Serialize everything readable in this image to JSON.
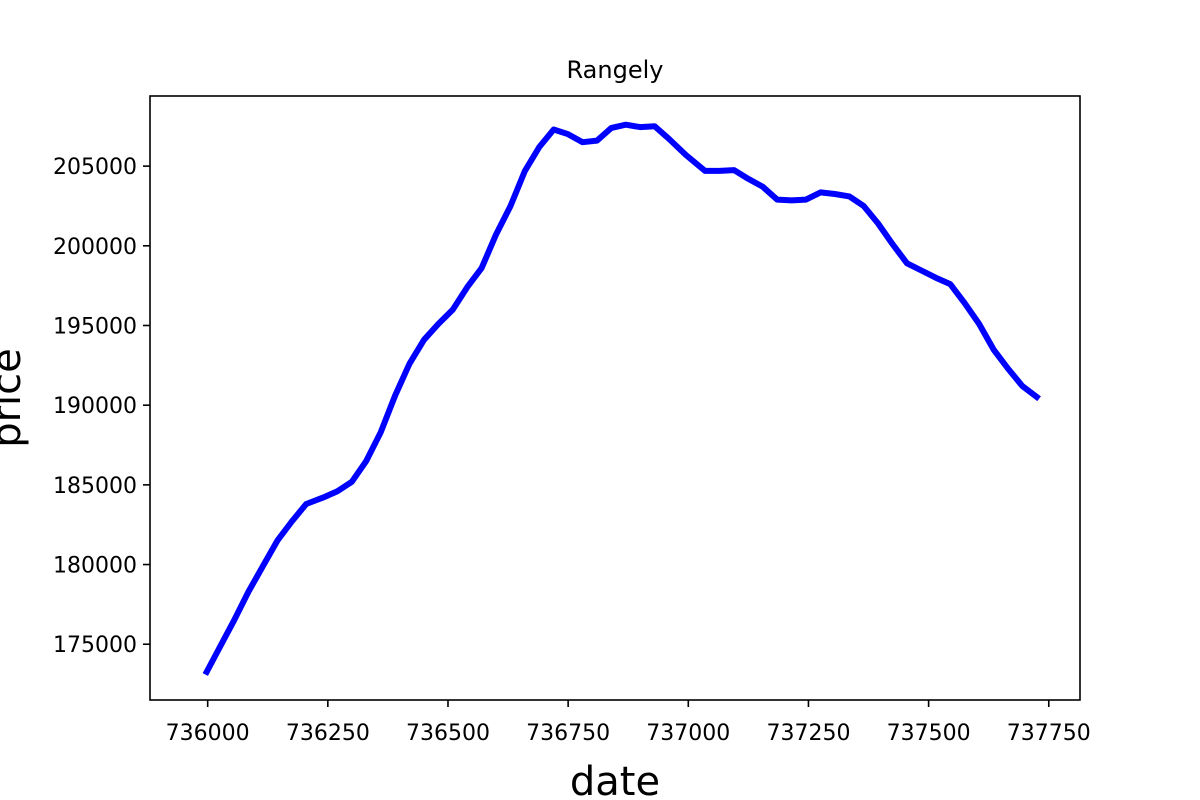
{
  "chart_data": {
    "type": "line",
    "title": "Rangely",
    "xlabel": "date",
    "ylabel": "price",
    "xlim": [
      735880,
      737815
    ],
    "ylim": [
      171500,
      209400
    ],
    "xticks": [
      736000,
      736250,
      736500,
      736750,
      737000,
      737250,
      737500,
      737750
    ],
    "yticks": [
      175000,
      180000,
      185000,
      190000,
      195000,
      200000,
      205000
    ],
    "grid": false,
    "legend": "none",
    "series": [
      {
        "color": "#0000ff",
        "x": [
          735995,
          736025,
          736055,
          736085,
          736115,
          736145,
          736175,
          736205,
          736240,
          736270,
          736300,
          736330,
          736360,
          736390,
          736420,
          736450,
          736480,
          736510,
          736540,
          736570,
          736600,
          736630,
          736660,
          736690,
          736720,
          736750,
          736780,
          736810,
          736840,
          736870,
          736900,
          736930,
          736960,
          736995,
          737035,
          737065,
          737095,
          737125,
          737155,
          737185,
          737215,
          737245,
          737275,
          737305,
          737335,
          737365,
          737395,
          737425,
          737455,
          737485,
          737515,
          737545,
          737575,
          737605,
          737635,
          737665,
          737695,
          737730
        ],
        "y": [
          173100,
          174800,
          176500,
          178300,
          179900,
          181500,
          182700,
          183800,
          184200,
          184600,
          185200,
          186500,
          188300,
          190600,
          192600,
          194100,
          195100,
          196000,
          197400,
          198600,
          200700,
          202500,
          204700,
          206200,
          207300,
          207000,
          206500,
          206600,
          207400,
          207600,
          207450,
          207500,
          206700,
          205700,
          204700,
          204700,
          204750,
          204200,
          203700,
          202900,
          202850,
          202900,
          203350,
          203250,
          203100,
          202500,
          201400,
          200100,
          198900,
          198450,
          198000,
          197600,
          196400,
          195100,
          193500,
          192300,
          191200,
          190400
        ]
      }
    ]
  }
}
